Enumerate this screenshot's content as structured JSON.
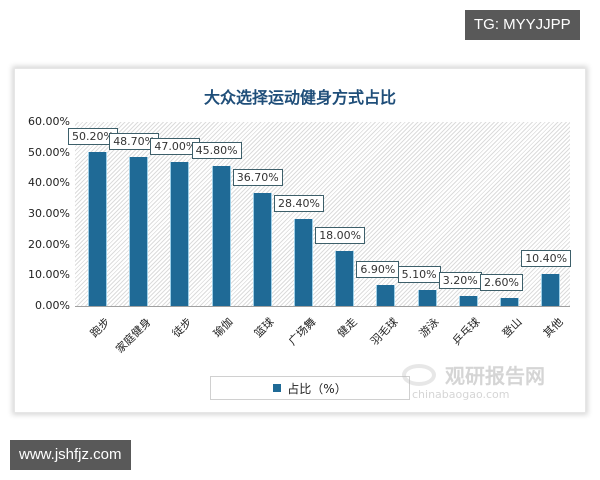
{
  "overlay": {
    "top_tag": "TG: MYYJJPP",
    "bottom_tag": "www.jshfjz.com"
  },
  "watermark": {
    "brand": "观研报告网",
    "sub": "chinabaogao.com"
  },
  "chart_data": {
    "type": "bar",
    "title": "大众选择运动健身方式占比",
    "categories": [
      "跑步",
      "家庭健身",
      "徒步",
      "瑜伽",
      "篮球",
      "广场舞",
      "健走",
      "羽毛球",
      "游泳",
      "乒乓球",
      "登山",
      "其他"
    ],
    "values": [
      50.2,
      48.7,
      47.0,
      45.8,
      36.7,
      28.4,
      18.0,
      6.9,
      5.1,
      3.2,
      2.6,
      10.4
    ],
    "value_labels": [
      "50.20%",
      "48.70%",
      "47.00%",
      "45.80%",
      "36.70%",
      "28.40%",
      "18.00%",
      "6.90%",
      "5.10%",
      "3.20%",
      "2.60%",
      "10.40%"
    ],
    "series": [
      {
        "name": "占比（%）",
        "values": [
          50.2,
          48.7,
          47.0,
          45.8,
          36.7,
          28.4,
          18.0,
          6.9,
          5.1,
          3.2,
          2.6,
          10.4
        ]
      }
    ],
    "xlabel": "",
    "ylabel": "",
    "ylim": [
      0,
      60
    ],
    "yticks": [
      "60.00%",
      "50.00%",
      "40.00%",
      "30.00%",
      "20.00%",
      "10.00%",
      "0.00%"
    ],
    "legend": {
      "label": "占比（%）",
      "position": "bottom"
    },
    "bar_color": "#1f6a96",
    "title_color": "#1f4e79",
    "grid": false
  }
}
